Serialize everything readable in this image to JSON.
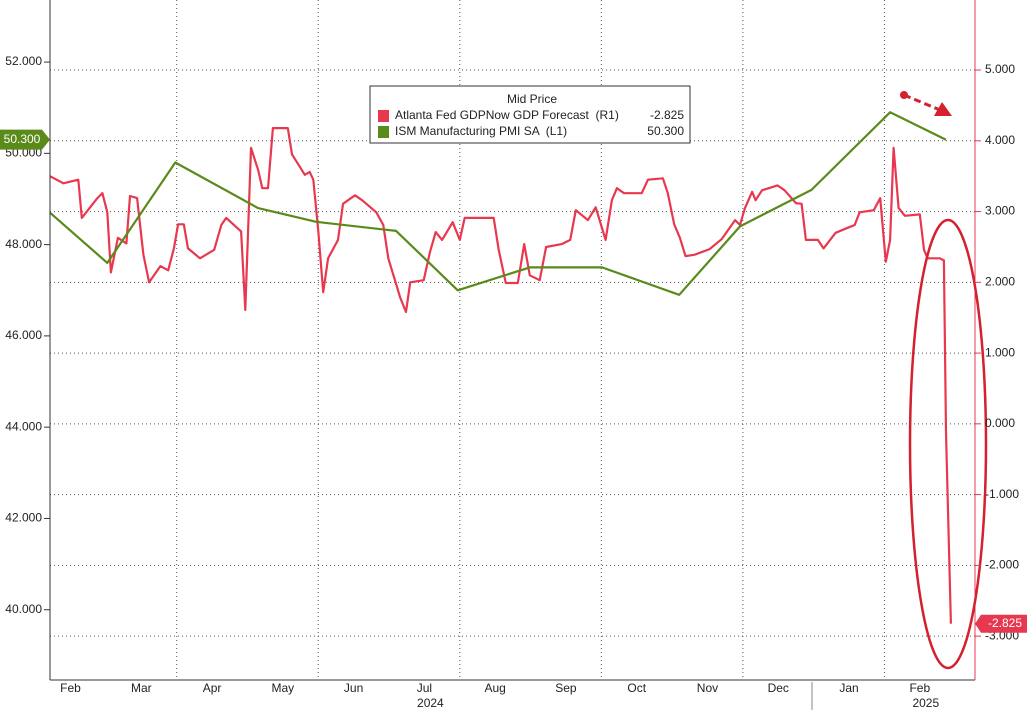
{
  "chart_data": {
    "type": "line",
    "legend_title": "Mid Price",
    "categories": [
      "Feb",
      "Mar",
      "Apr",
      "May",
      "Jun",
      "Jul",
      "Aug",
      "Sep",
      "Oct",
      "Nov",
      "Dec",
      "Jan",
      "Feb"
    ],
    "years": [
      "2024",
      "2025"
    ],
    "xlim": [
      0.21,
      13.28
    ],
    "ylim": [
      38.46,
      53.36
    ],
    "yticks": [
      {
        "value": 40,
        "label": "40.000"
      },
      {
        "value": 42,
        "label": "42.000"
      },
      {
        "value": 44,
        "label": "44.000"
      },
      {
        "value": 46,
        "label": "46.000"
      },
      {
        "value": 48,
        "label": "48.000"
      },
      {
        "value": 50,
        "label": "50.000"
      },
      {
        "value": 52,
        "label": "52.000"
      }
    ],
    "y2lim": [
      -3.62,
      5.99
    ],
    "y2ticks": [
      {
        "value": -3,
        "label": "-3.000"
      },
      {
        "value": -2,
        "label": "-2.000"
      },
      {
        "value": -1,
        "label": "-1.000"
      },
      {
        "value": 0,
        "label": "0.000"
      },
      {
        "value": 1,
        "label": "1.000"
      },
      {
        "value": 2,
        "label": "2.000"
      },
      {
        "value": 3,
        "label": "3.000"
      },
      {
        "value": 4,
        "label": "4.000"
      },
      {
        "value": 5,
        "label": "5.000"
      }
    ],
    "grid": "y2",
    "series": [
      {
        "name": "Atlanta Fed GDPNow GDP Forecast  (R1)",
        "color": "#e8384f",
        "axis": "y2",
        "last_label": "-2.825",
        "x": [
          0.21,
          0.4,
          0.61,
          0.66,
          0.88,
          0.95,
          1.02,
          1.07,
          1.17,
          1.29,
          1.34,
          1.44,
          1.53,
          1.61,
          1.77,
          1.88,
          1.96,
          2.02,
          2.1,
          2.16,
          2.33,
          2.53,
          2.63,
          2.7,
          2.91,
          2.97,
          3.05,
          3.15,
          3.21,
          3.29,
          3.36,
          3.57,
          3.63,
          3.81,
          3.88,
          3.93,
          4.0,
          4.07,
          4.14,
          4.28,
          4.35,
          4.52,
          4.62,
          4.82,
          4.92,
          4.99,
          5.16,
          5.24,
          5.3,
          5.49,
          5.58,
          5.66,
          5.75,
          5.9,
          6.0,
          6.07,
          6.48,
          6.55,
          6.65,
          6.82,
          6.91,
          6.99,
          7.13,
          7.22,
          7.44,
          7.56,
          7.64,
          7.81,
          7.92,
          8.06,
          8.15,
          8.22,
          8.32,
          8.57,
          8.66,
          8.87,
          8.94,
          9.03,
          9.11,
          9.19,
          9.32,
          9.53,
          9.7,
          9.89,
          9.96,
          10.03,
          10.13,
          10.18,
          10.27,
          10.49,
          10.59,
          10.75,
          10.83,
          10.89,
          11.06,
          11.14,
          11.31,
          11.48,
          11.58,
          11.65,
          11.85,
          11.94,
          12.02,
          12.08,
          12.13,
          12.2,
          12.29,
          12.5,
          12.56,
          12.61,
          12.78,
          12.84,
          12.87,
          12.94
        ],
        "values": [
          3.5,
          3.4,
          3.45,
          2.91,
          3.19,
          3.26,
          2.99,
          2.14,
          2.63,
          2.55,
          3.22,
          3.19,
          2.39,
          2.0,
          2.23,
          2.17,
          2.48,
          2.82,
          2.82,
          2.48,
          2.34,
          2.46,
          2.81,
          2.91,
          2.72,
          1.61,
          3.9,
          3.59,
          3.33,
          3.33,
          4.18,
          4.18,
          3.81,
          3.52,
          3.56,
          3.45,
          2.74,
          1.86,
          2.34,
          2.6,
          3.11,
          3.23,
          3.16,
          2.99,
          2.81,
          2.34,
          1.78,
          1.58,
          2.0,
          2.03,
          2.43,
          2.71,
          2.6,
          2.85,
          2.6,
          2.91,
          2.91,
          2.46,
          1.99,
          1.99,
          2.54,
          2.1,
          2.03,
          2.5,
          2.54,
          2.6,
          3.02,
          2.88,
          3.06,
          2.6,
          3.16,
          3.33,
          3.26,
          3.26,
          3.45,
          3.47,
          3.26,
          2.82,
          2.63,
          2.37,
          2.39,
          2.47,
          2.61,
          2.88,
          2.81,
          3.05,
          3.28,
          3.16,
          3.3,
          3.37,
          3.3,
          3.12,
          3.11,
          2.6,
          2.6,
          2.48,
          2.7,
          2.77,
          2.81,
          2.99,
          3.02,
          3.19,
          2.29,
          2.6,
          3.9,
          3.05,
          2.94,
          2.96,
          2.46,
          2.34,
          2.34,
          2.31,
          -0.12,
          -2.825
        ]
      },
      {
        "name": "ISM Manufacturing PMI SA  (L1)",
        "color": "#5a8a1a",
        "axis": "y",
        "last_label": "50.300",
        "x": [
          0.21,
          1.02,
          1.98,
          3.15,
          3.97,
          5.1,
          5.97,
          6.99,
          8.01,
          9.1,
          9.96,
          10.97,
          12.08,
          12.87
        ],
        "values": [
          48.7,
          47.6,
          49.8,
          48.8,
          48.5,
          48.3,
          47.0,
          47.5,
          47.5,
          46.9,
          48.4,
          49.2,
          50.9,
          50.3
        ]
      }
    ]
  }
}
